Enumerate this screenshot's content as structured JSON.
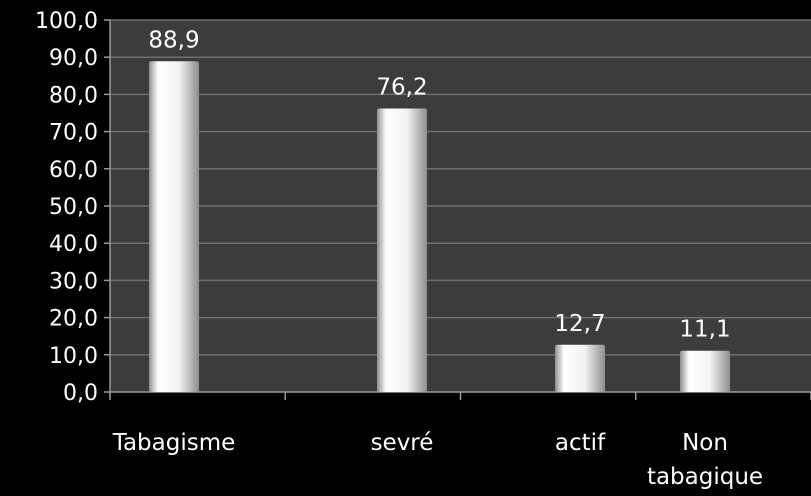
{
  "chart_data": {
    "type": "bar",
    "categories": [
      "Tabagisme",
      "sevré",
      "actif",
      "Non tabagique"
    ],
    "values": [
      88.9,
      76.2,
      12.7,
      11.1
    ],
    "value_labels": [
      "88,9",
      "76,2",
      "12,7",
      "11,1"
    ],
    "ylim": [
      0,
      100
    ],
    "yticks": [
      "0,0",
      "10,0",
      "20,0",
      "30,0",
      "40,0",
      "50,0",
      "60,0",
      "70,0",
      "80,0",
      "90,0",
      "100,0"
    ],
    "grid": true,
    "legend": "none",
    "colors": {
      "background": "#000000",
      "plot_area": "#3c3c3c",
      "gridline": "#6e6e6e",
      "bar_light": "#ffffff",
      "bar_dark": "#8f8f8f",
      "text": "#ffffff"
    }
  }
}
